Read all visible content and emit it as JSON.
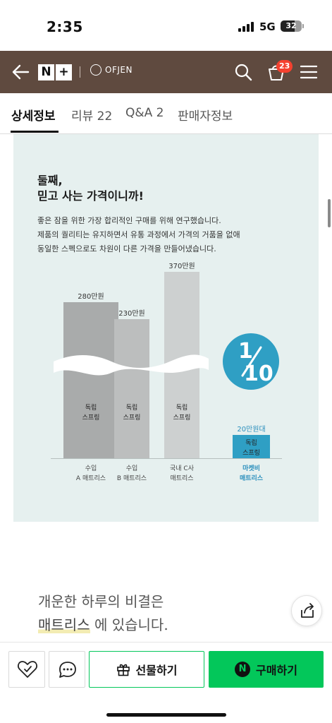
{
  "status_bar": {
    "time": "2:35",
    "network": "5G",
    "battery": "32"
  },
  "header": {
    "back_icon": "arrow-left-icon",
    "nplus_n": "N",
    "nplus_plus": "+",
    "brand": "OFJEN",
    "cart_count": "23",
    "icons": [
      "search-icon",
      "cart-icon",
      "menu-icon"
    ]
  },
  "tabs": [
    {
      "label": "상세정보",
      "active": true
    },
    {
      "label": "리뷰 22",
      "active": false
    },
    {
      "label": "Q&A 2",
      "active": false
    },
    {
      "label": "판매자정보",
      "active": false
    }
  ],
  "content": {
    "heading_line1": "둘째,",
    "heading_line2": "믿고 사는 가격이니까!",
    "desc_lines": [
      "좋은 잠을 위한 가장 합리적인 구매를 위해 연구했습니다.",
      "제품의 퀄리티는 유지하면서 유통 과정에서 가격의 거품을 없애",
      "동일한 스펙으로도 차원이 다른 가격을 만들어냈습니다."
    ],
    "badge_top": "1",
    "badge_bottom": "10",
    "bar_inner_lines": [
      "독립",
      "스프링"
    ]
  },
  "chart_data": {
    "type": "bar",
    "categories": [
      "수입 A매트리스",
      "수입 B매트리스",
      "국내 C사 매트리스",
      "마켓비 매트리스"
    ],
    "category_lines": [
      [
        "수입",
        "A 매트리스"
      ],
      [
        "수입",
        "B 매트리스"
      ],
      [
        "국내 C사",
        "매트리스"
      ],
      [
        "마켓비",
        "매트리스"
      ]
    ],
    "value_labels": [
      "280만원",
      "230만원",
      "370만원",
      "20만원대"
    ],
    "values": [
      280,
      230,
      370,
      20
    ],
    "unit": "만원",
    "colors": [
      "#a9abab",
      "#bcbebe",
      "#cdd0d0",
      "#2f9fc4"
    ],
    "highlight_index": 3,
    "axis_break": true
  },
  "slogan": {
    "line1": "개운한 하루의 비결은",
    "line2_highlight": "매트리스",
    "line2_rest": " 에 있습니다."
  },
  "bottom_bar": {
    "gift_label": "선물하기",
    "buy_label": "구매하기",
    "buy_icon_letter": "N",
    "accent": "#03c75a"
  }
}
